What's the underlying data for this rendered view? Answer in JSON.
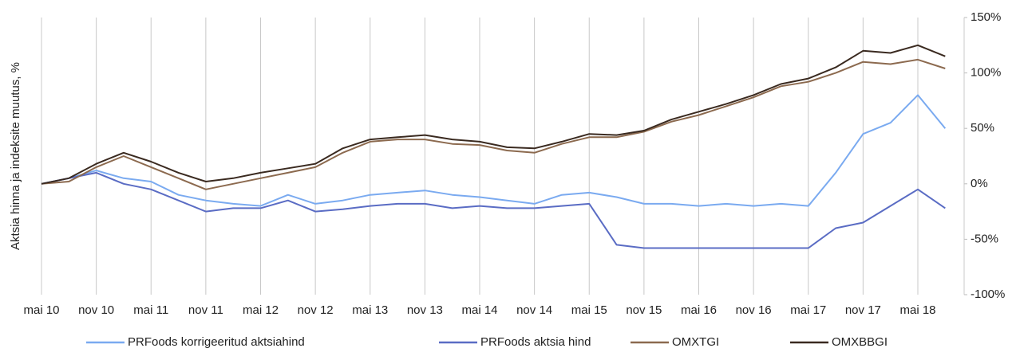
{
  "chart_data": {
    "type": "line",
    "y_label": "Aktsia hinna ja indeksite muutus, %",
    "categories": [
      "mai 10",
      null,
      "nov 10",
      null,
      "mai 11",
      null,
      "nov 11",
      null,
      "mai 12",
      null,
      "nov 12",
      null,
      "mai 13",
      null,
      "nov 13",
      null,
      "mai 14",
      null,
      "nov 14",
      null,
      "mai 15",
      null,
      "nov 15",
      null,
      "mai 16",
      null,
      "nov 16",
      null,
      "mai 17",
      null,
      "nov 17",
      null,
      "mai 18",
      null
    ],
    "series": [
      {
        "name": "PRFoods korrigeeritud aktsiahind",
        "color": "#7aaaf0",
        "values": [
          0,
          5,
          12,
          5,
          2,
          -10,
          -15,
          -18,
          -20,
          -10,
          -18,
          -15,
          -10,
          -8,
          -6,
          -10,
          -12,
          -15,
          -18,
          -10,
          -8,
          -12,
          -18,
          -18,
          -20,
          -18,
          -20,
          -18,
          -20,
          10,
          45,
          55,
          80,
          50
        ]
      },
      {
        "name": "PRFoods aktsia hind",
        "color": "#5a6cc4",
        "values": [
          0,
          5,
          10,
          0,
          -5,
          -15,
          -25,
          -22,
          -22,
          -15,
          -25,
          -23,
          -20,
          -18,
          -18,
          -22,
          -20,
          -22,
          -22,
          -20,
          -18,
          -55,
          -58,
          -58,
          -58,
          -58,
          -58,
          -58,
          -58,
          -40,
          -35,
          -20,
          -5,
          -22
        ]
      },
      {
        "name": "OMXTGI",
        "color": "#8c6a4f",
        "values": [
          0,
          2,
          15,
          25,
          15,
          5,
          -5,
          0,
          5,
          10,
          15,
          28,
          38,
          40,
          40,
          36,
          35,
          30,
          28,
          36,
          42,
          42,
          47,
          56,
          62,
          70,
          78,
          88,
          92,
          100,
          110,
          108,
          112,
          104
        ]
      },
      {
        "name": "OMXBBGI",
        "color": "#3a2a20",
        "values": [
          0,
          5,
          18,
          28,
          20,
          10,
          2,
          5,
          10,
          14,
          18,
          32,
          40,
          42,
          44,
          40,
          38,
          33,
          32,
          38,
          45,
          44,
          48,
          58,
          65,
          72,
          80,
          90,
          95,
          105,
          120,
          118,
          125,
          115
        ]
      }
    ],
    "ylim": [
      -100,
      150
    ],
    "yticks": [
      {
        "value": -100,
        "label": "-100%"
      },
      {
        "value": -50,
        "label": "-50%"
      },
      {
        "value": 0,
        "label": "0%"
      },
      {
        "value": 50,
        "label": "50%"
      },
      {
        "value": 100,
        "label": "100%"
      },
      {
        "value": 150,
        "label": "150%"
      }
    ],
    "grid": true,
    "legend": "bottom"
  }
}
